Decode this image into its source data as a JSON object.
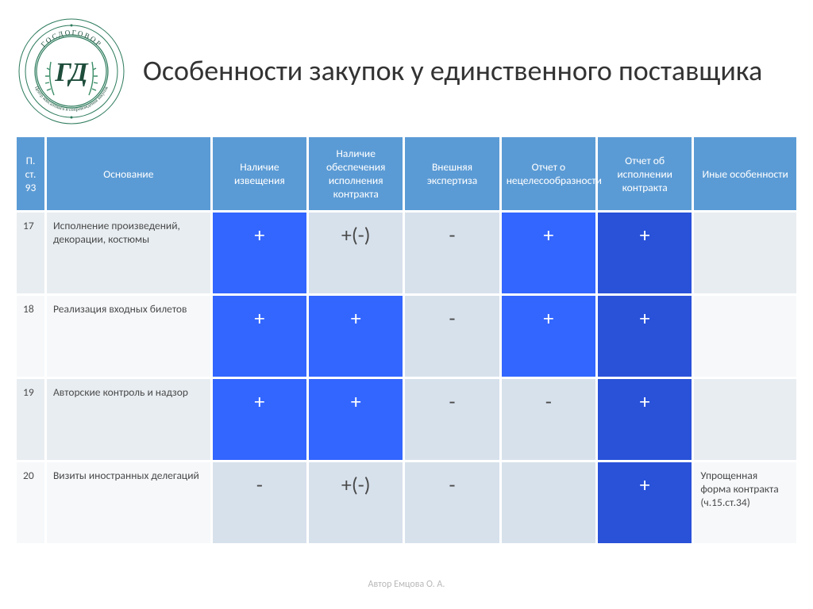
{
  "header": {
    "title": "Особенности закупок у единственного поставщика",
    "logo_text_top": "ГОСДОГОВОР",
    "logo_text_bottom": "Центр консалтинга и сопровождения закупок",
    "logo_monogram": "ГД",
    "logo_colors": {
      "ring": "#2b7a5b",
      "text": "#1e4d3b",
      "leaf": "#3a8c66"
    }
  },
  "table": {
    "columns": [
      {
        "key": "num",
        "label": "П. ст. 93"
      },
      {
        "key": "basis",
        "label": "Основание"
      },
      {
        "key": "notice",
        "label": "Наличие извещения"
      },
      {
        "key": "security",
        "label": "Наличие обеспечения исполнения контракта"
      },
      {
        "key": "expertise",
        "label": "Внешняя экспертиза"
      },
      {
        "key": "inexp_report",
        "label": "Отчет о нецелесообразности"
      },
      {
        "key": "exec_report",
        "label": "Отчет об исполнении контракта"
      },
      {
        "key": "other",
        "label": "Иные особенности"
      }
    ],
    "cell_styles": {
      "plus_bright": {
        "bg": "#3366ff",
        "fg": "#ffffff"
      },
      "plus_royal": {
        "bg": "#2952d9",
        "fg": "#ffffff"
      },
      "minus_soft": {
        "bg": "#d7e1ec",
        "fg": "#4a4a4a"
      },
      "row_alt": {
        "bg": "#e8edf1"
      },
      "row_plain": {
        "bg": "#f6f8fa"
      }
    },
    "rows": [
      {
        "num": "17",
        "basis": "Исполнение произведений, декорации, костюмы",
        "cells": [
          {
            "text": "+",
            "style": "plus_bright"
          },
          {
            "text": "+(-)",
            "style": "minus_soft"
          },
          {
            "text": "-",
            "style": "minus_soft"
          },
          {
            "text": "+",
            "style": "plus_bright"
          },
          {
            "text": "+",
            "style": "plus_royal"
          }
        ],
        "other": "",
        "row_bg": "row_alt"
      },
      {
        "num": "18",
        "basis": "Реализация входных билетов",
        "cells": [
          {
            "text": "+",
            "style": "plus_bright"
          },
          {
            "text": "+",
            "style": "plus_bright"
          },
          {
            "text": "-",
            "style": "minus_soft"
          },
          {
            "text": "+",
            "style": "plus_bright"
          },
          {
            "text": "+",
            "style": "plus_royal"
          }
        ],
        "other": "",
        "row_bg": "row_plain"
      },
      {
        "num": "19",
        "basis": "Авторские контроль и надзор",
        "cells": [
          {
            "text": "+",
            "style": "plus_bright"
          },
          {
            "text": "+",
            "style": "plus_bright"
          },
          {
            "text": "-",
            "style": "minus_soft"
          },
          {
            "text": "-",
            "style": "minus_soft"
          },
          {
            "text": "+",
            "style": "plus_royal"
          }
        ],
        "other": "",
        "row_bg": "row_alt"
      },
      {
        "num": "20",
        "basis": "Визиты иностранных делегаций",
        "cells": [
          {
            "text": "-",
            "style": "minus_soft"
          },
          {
            "text": "+(-)",
            "style": "minus_soft"
          },
          {
            "text": "-",
            "style": "minus_soft"
          },
          {
            "text": "",
            "style": "minus_soft"
          },
          {
            "text": "+",
            "style": "plus_royal"
          }
        ],
        "other": "Упрощенная форма контракта (ч.15.ст.34)",
        "row_bg": "row_plain"
      }
    ]
  },
  "footer": {
    "author": "Автор Емцова О. А."
  }
}
